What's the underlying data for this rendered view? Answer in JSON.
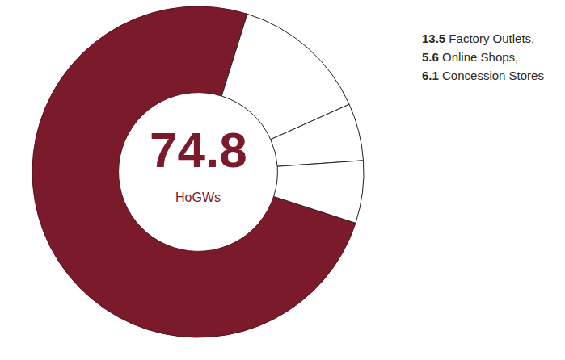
{
  "chart_data": {
    "type": "pie",
    "categories": [
      "HoGWs",
      "Factory Outlets,",
      "Online Shops,",
      "Concession Stores"
    ],
    "values": [
      74.8,
      13.5,
      5.6,
      6.1
    ],
    "colors": [
      "#7b1a2b",
      "#ffffff",
      "#ffffff",
      "#ffffff"
    ]
  }
}
